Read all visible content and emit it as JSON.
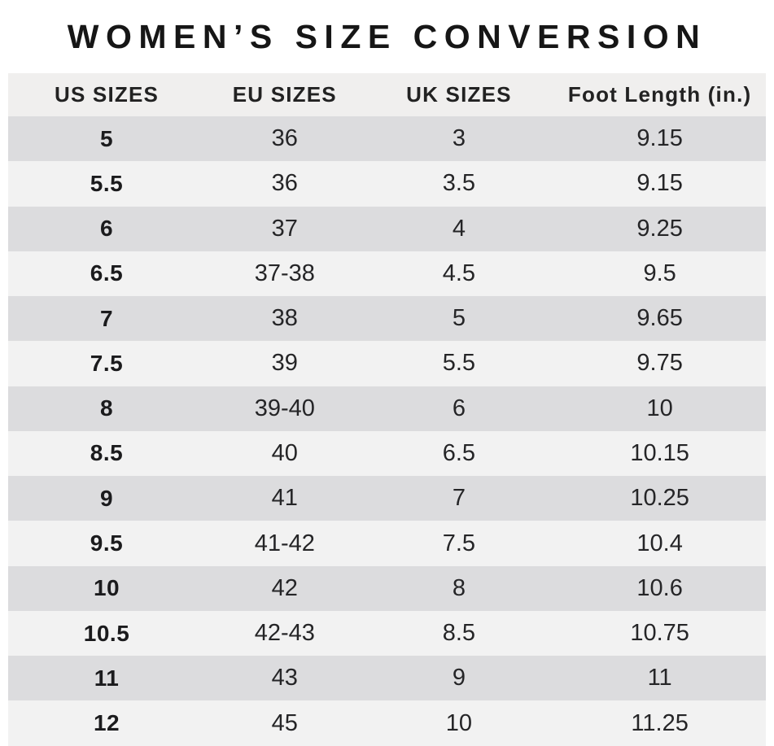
{
  "title": "WOMEN’S SIZE CONVERSION",
  "chart_data": {
    "type": "table",
    "title": "WOMEN’S SIZE CONVERSION",
    "columns": [
      "US SIZES",
      "EU SIZES",
      "UK SIZES",
      "Foot Length (in.)"
    ],
    "rows": [
      [
        "5",
        "36",
        "3",
        "9.15"
      ],
      [
        "5.5",
        "36",
        "3.5",
        "9.15"
      ],
      [
        "6",
        "37",
        "4",
        "9.25"
      ],
      [
        "6.5",
        "37-38",
        "4.5",
        "9.5"
      ],
      [
        "7",
        "38",
        "5",
        "9.65"
      ],
      [
        "7.5",
        "39",
        "5.5",
        "9.75"
      ],
      [
        "8",
        "39-40",
        "6",
        "10"
      ],
      [
        "8.5",
        "40",
        "6.5",
        "10.15"
      ],
      [
        "9",
        "41",
        "7",
        "10.25"
      ],
      [
        "9.5",
        "41-42",
        "7.5",
        "10.4"
      ],
      [
        "10",
        "42",
        "8",
        "10.6"
      ],
      [
        "10.5",
        "42-43",
        "8.5",
        "10.75"
      ],
      [
        "11",
        "43",
        "9",
        "11"
      ],
      [
        "12",
        "45",
        "10",
        "11.25"
      ]
    ]
  },
  "colors": {
    "row_dark": "#dcdcde",
    "row_light": "#f2f2f2",
    "header_bg": "#f0efee",
    "title_text": "#161616",
    "cell_text": "#252527"
  }
}
